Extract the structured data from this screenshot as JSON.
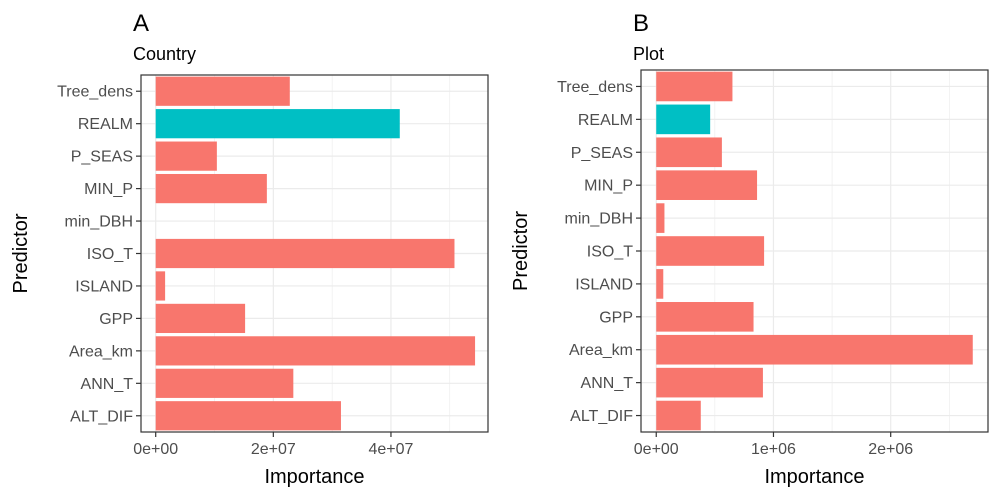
{
  "colors": {
    "default_bar": "#F8766D",
    "highlight_bar": "#00BFC4",
    "grid": "#EBEBEB",
    "panel_border": "#333333",
    "tick_text": "#4D4D4D"
  },
  "chart_data": [
    {
      "type": "bar",
      "orientation": "horizontal",
      "tag": "A",
      "subtitle": "Country",
      "xlabel": "Importance",
      "ylabel": "Predictor",
      "xlim": [
        -2500000,
        56500000
      ],
      "xticks": [
        0,
        20000000,
        40000000
      ],
      "xtick_labels": [
        "0e+00",
        "2e+07",
        "4e+07"
      ],
      "grid": true,
      "categories": [
        "Tree_dens",
        "REALM",
        "P_SEAS",
        "MIN_P",
        "min_DBH",
        "ISO_T",
        "ISLAND",
        "GPP",
        "Area_km",
        "ANN_T",
        "ALT_DIF"
      ],
      "values": [
        22800000,
        41500000,
        10400000,
        18900000,
        0,
        50800000,
        1600000,
        15200000,
        54300000,
        23400000,
        31500000
      ],
      "highlight": [
        "REALM"
      ]
    },
    {
      "type": "bar",
      "orientation": "horizontal",
      "tag": "B",
      "subtitle": "Plot",
      "xlabel": "Importance",
      "ylabel": "Predictor",
      "xlim": [
        -130000,
        2830000
      ],
      "xticks": [
        0,
        1000000,
        2000000
      ],
      "xtick_labels": [
        "0e+00",
        "1e+06",
        "2e+06"
      ],
      "grid": true,
      "categories": [
        "Tree_dens",
        "REALM",
        "P_SEAS",
        "MIN_P",
        "min_DBH",
        "ISO_T",
        "ISLAND",
        "GPP",
        "Area_km",
        "ANN_T",
        "ALT_DIF"
      ],
      "values": [
        650000,
        460000,
        560000,
        860000,
        70000,
        920000,
        60000,
        830000,
        2700000,
        910000,
        380000
      ],
      "highlight": [
        "REALM"
      ]
    }
  ]
}
